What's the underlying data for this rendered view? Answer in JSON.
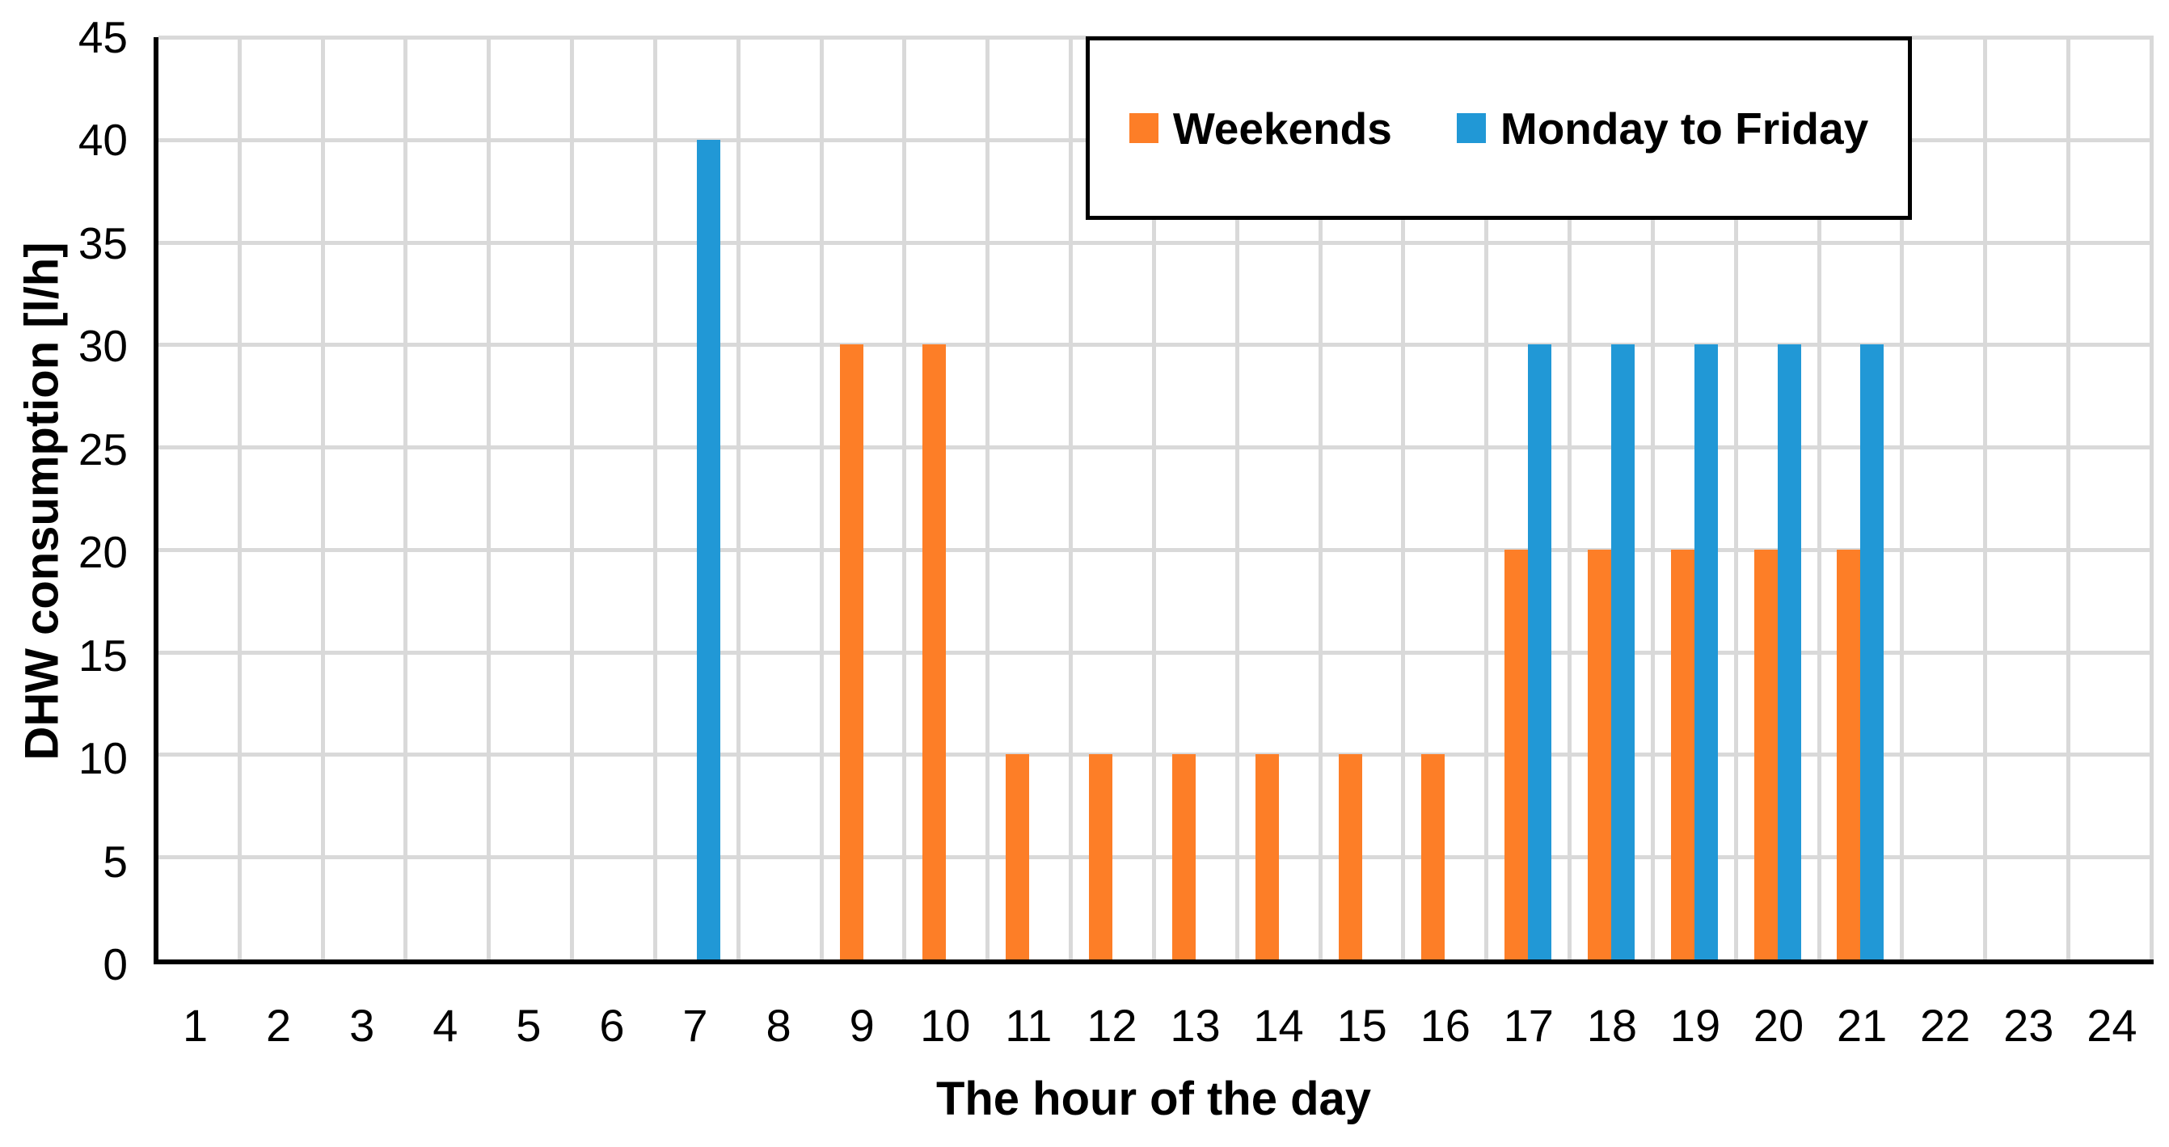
{
  "chart_data": {
    "type": "bar",
    "title": "",
    "xlabel": "The hour of the day",
    "ylabel": "DHW consumption [l/h]",
    "categories": [
      1,
      2,
      3,
      4,
      5,
      6,
      7,
      8,
      9,
      10,
      11,
      12,
      13,
      14,
      15,
      16,
      17,
      18,
      19,
      20,
      21,
      22,
      23,
      24
    ],
    "series": [
      {
        "name": "Weekends",
        "color": "#fd7e27",
        "values": [
          0,
          0,
          0,
          0,
          0,
          0,
          0,
          0,
          30,
          30,
          10,
          10,
          10,
          10,
          10,
          10,
          20,
          20,
          20,
          20,
          20,
          0,
          0,
          0
        ]
      },
      {
        "name": "Monday to Friday",
        "color": "#2198d6",
        "values": [
          0,
          0,
          0,
          0,
          0,
          0,
          40,
          0,
          0,
          0,
          0,
          0,
          0,
          0,
          0,
          0,
          30,
          30,
          30,
          30,
          30,
          0,
          0,
          0
        ]
      }
    ],
    "ylim": [
      0,
      45
    ],
    "yticks": [
      0,
      5,
      10,
      15,
      20,
      25,
      30,
      35,
      40,
      45
    ],
    "grid": true,
    "gridline_color": "#d9d9d9",
    "axis_color": "#000000",
    "legend_position": "top-right-inside-framed"
  }
}
